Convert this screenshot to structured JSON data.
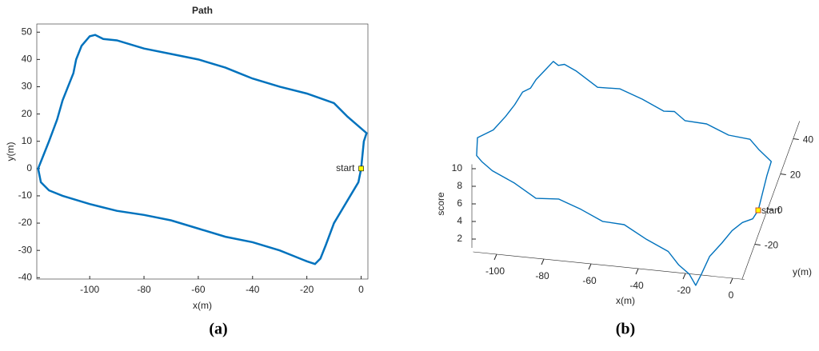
{
  "chart_data": [
    {
      "type": "line",
      "title": "Path",
      "xlabel": "x(m)",
      "ylabel": "y(m)",
      "caption": "(a)",
      "annotation": "start",
      "xlim": [
        -119.5,
        2.5
      ],
      "ylim": [
        -40.5,
        53
      ],
      "xticks": [
        -100,
        -80,
        -60,
        -40,
        -20,
        0
      ],
      "yticks": [
        -40,
        -30,
        -20,
        -10,
        0,
        10,
        20,
        30,
        40,
        50
      ],
      "color": "#0072bd",
      "marker_color": "#ffff00",
      "x": [
        0,
        1,
        2,
        -5,
        -10,
        -20,
        -30,
        -40,
        -45,
        -50,
        -60,
        -70,
        -80,
        -90,
        -95,
        -98,
        -100,
        -103,
        -105,
        -106,
        -108,
        -110,
        -112,
        -115,
        -117,
        -119,
        -118,
        -115,
        -110,
        -100,
        -90,
        -80,
        -70,
        -60,
        -50,
        -40,
        -30,
        -25,
        -20,
        -17,
        -15,
        -13,
        -10,
        -7,
        -4,
        -1,
        0
      ],
      "y": [
        0,
        10,
        13,
        19,
        24,
        27.5,
        30,
        33,
        35,
        37,
        40,
        42,
        44,
        47,
        47.5,
        49,
        48.5,
        45,
        40,
        35,
        30,
        25,
        18,
        10,
        5,
        0,
        -5,
        -8,
        -10,
        -13,
        -15.5,
        -17,
        -19,
        -22,
        -25,
        -27,
        -30,
        -32,
        -34,
        -35,
        -33,
        -28,
        -20,
        -15,
        -10,
        -5,
        0
      ]
    },
    {
      "type": "line3d",
      "xlabel": "x(m)",
      "ylabel": "y(m)",
      "zlabel": "score",
      "caption": "(b)",
      "annotation": "start",
      "xlim": [
        -110,
        5
      ],
      "ylim": [
        -40,
        50
      ],
      "zlim": [
        1,
        10.5
      ],
      "xticks": [
        -100,
        -80,
        -60,
        -40,
        -20,
        0
      ],
      "yticks": [
        -20,
        0,
        20,
        40
      ],
      "zticks": [
        2,
        4,
        6,
        8,
        10
      ],
      "color": "#0072bd",
      "marker_color": "#ffff00",
      "x": [
        0,
        1,
        2,
        -5,
        -10,
        -20,
        -30,
        -40,
        -45,
        -50,
        -60,
        -70,
        -80,
        -90,
        -95,
        -98,
        -100,
        -103,
        -105,
        -106,
        -108,
        -110,
        -112,
        -115,
        -117,
        -119,
        -118,
        -115,
        -110,
        -100,
        -90,
        -80,
        -70,
        -60,
        -50,
        -40,
        -30,
        -25,
        -20,
        -17,
        -15,
        -13,
        -10,
        -7,
        -4,
        -1,
        0
      ],
      "y": [
        0,
        10,
        13,
        19,
        24,
        27.5,
        30,
        33,
        35,
        37,
        40,
        42,
        44,
        47,
        47.5,
        49,
        48.5,
        45,
        40,
        35,
        30,
        25,
        18,
        10,
        5,
        0,
        -5,
        -8,
        -10,
        -13,
        -15.5,
        -17,
        -19,
        -22,
        -25,
        -27,
        -30,
        -32,
        -34,
        -35,
        -33,
        -28,
        -20,
        -15,
        -10,
        -5,
        0
      ],
      "z": [
        5,
        7,
        8,
        8,
        8,
        7.5,
        8,
        7.5,
        8,
        7.5,
        8,
        8.5,
        8,
        9,
        9.5,
        9,
        9.5,
        9,
        9,
        9,
        9.5,
        9,
        9,
        9,
        9.5,
        10,
        9,
        9,
        8.5,
        8,
        7,
        7.5,
        7,
        6.5,
        7,
        6,
        5.5,
        4.5,
        4,
        3,
        4,
        5,
        5,
        5.5,
        5.5,
        5,
        5
      ]
    }
  ]
}
